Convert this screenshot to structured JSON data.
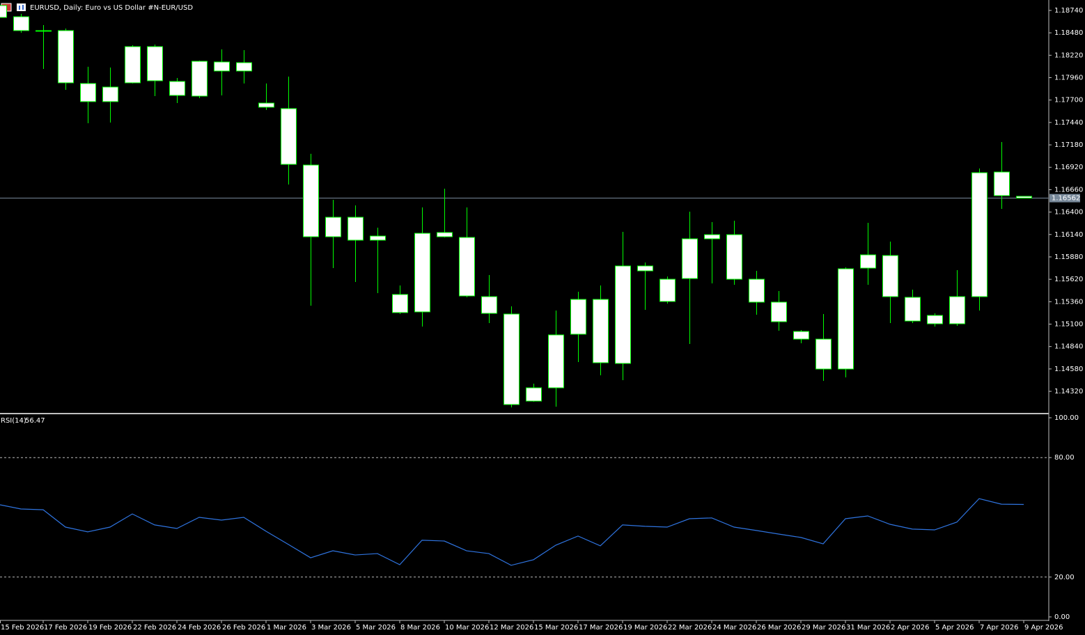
{
  "chart_data": [
    {
      "type": "candlestick",
      "title": "EURUSD, Daily:  Euro vs US Dollar #N-EUR/USD",
      "categories": [
        "15 Feb 2026",
        null,
        "17 Feb 2026",
        null,
        "19 Feb 2026",
        null,
        "22 Feb 2026",
        null,
        "24 Feb 2026",
        null,
        "26 Feb 2026",
        null,
        "1 Mar 2026",
        null,
        "3 Mar 2026",
        null,
        "5 Mar 2026",
        null,
        "8 Mar 2026",
        null,
        "10 Mar 2026",
        null,
        "12 Mar 2026",
        null,
        "15 Mar 2026",
        null,
        "17 Mar 2026",
        null,
        "19 Mar 2026",
        null,
        "22 Mar 2026",
        null,
        "24 Mar 2026",
        null,
        "26 Mar 2026",
        null,
        "29 Mar 2026",
        null,
        "31 Mar 2026",
        null,
        "2 Apr 2026",
        null,
        "5 Apr 2026",
        null,
        "7 Apr 2026",
        null,
        "9 Apr 2026"
      ],
      "open": [
        1.18659,
        1.18667,
        1.18506,
        1.18506,
        1.17892,
        1.17682,
        1.179,
        1.1832,
        1.17916,
        1.17746,
        1.18037,
        1.18134,
        1.17665,
        1.17601,
        1.16946,
        1.16114,
        1.1634,
        1.16122,
        1.15444,
        1.15242,
        1.16163,
        1.16106,
        1.15419,
        1.15217,
        1.14207,
        1.14361,
        1.14983,
        1.15387,
        1.14644,
        1.15775,
        1.15363,
        1.15629,
        1.1609,
        1.16138,
        1.15621,
        1.15355,
        1.15015,
        1.14926,
        1.14579,
        1.1575,
        1.15896,
        1.15411,
        1.15201,
        1.15104,
        1.15419,
        1.16865,
        1.16583
      ],
      "high": [
        1.18821,
        1.187,
        1.1857,
        1.1853,
        1.18086,
        1.18077,
        1.18336,
        1.18344,
        1.17956,
        1.18158,
        1.18288,
        1.18279,
        1.17892,
        1.17972,
        1.17076,
        1.16542,
        1.16478,
        1.16219,
        1.15548,
        1.16454,
        1.16672,
        1.16454,
        1.1567,
        1.15306,
        1.14409,
        1.15258,
        1.15476,
        1.15548,
        1.16171,
        1.15815,
        1.15653,
        1.16405,
        1.16284,
        1.163,
        1.15718,
        1.15484,
        1.15031,
        1.15217,
        1.15759,
        1.16276,
        1.16057,
        1.155,
        1.15225,
        1.15726,
        1.16906,
        1.17213,
        1.16583
      ],
      "low": [
        1.18659,
        1.18481,
        1.18061,
        1.17819,
        1.17431,
        1.17439,
        1.17892,
        1.17746,
        1.17665,
        1.17722,
        1.17754,
        1.17892,
        1.17585,
        1.1672,
        1.15314,
        1.1575,
        1.15589,
        1.1546,
        1.15217,
        1.15072,
        1.16106,
        1.15411,
        1.15112,
        1.14134,
        1.14199,
        1.14142,
        1.1466,
        1.14506,
        1.1445,
        1.15266,
        1.15338,
        1.1487,
        1.15573,
        1.15557,
        1.15209,
        1.15023,
        1.14878,
        1.14442,
        1.14482,
        1.15557,
        1.15112,
        1.15112,
        1.15072,
        1.1508,
        1.15258,
        1.16437,
        1.16562
      ],
      "close": [
        1.18797,
        1.18506,
        1.18498,
        1.179,
        1.17682,
        1.17851,
        1.1832,
        1.17924,
        1.17754,
        1.1815,
        1.18142,
        1.18037,
        1.17617,
        1.16954,
        1.16114,
        1.1634,
        1.16074,
        1.16074,
        1.15234,
        1.16154,
        1.16114,
        1.15427,
        1.15225,
        1.14167,
        1.14361,
        1.14975,
        1.15387,
        1.14652,
        1.15775,
        1.15718,
        1.15621,
        1.1609,
        1.16138,
        1.15621,
        1.15355,
        1.15128,
        1.14926,
        1.14579,
        1.15742,
        1.15904,
        1.15419,
        1.15136,
        1.15104,
        1.15419,
        1.16857,
        1.16591,
        1.16562
      ],
      "color": "#00ff00",
      "body_color": "#ffffff",
      "ylim": [
        1.1407,
        1.18861
      ],
      "yticks": [
        {
          "value": 1.1874,
          "label": "1.18740"
        },
        {
          "value": 1.1848,
          "label": "1.18480"
        },
        {
          "value": 1.1822,
          "label": "1.18220"
        },
        {
          "value": 1.1796,
          "label": "1.17960"
        },
        {
          "value": 1.177,
          "label": "1.17700"
        },
        {
          "value": 1.1744,
          "label": "1.17440"
        },
        {
          "value": 1.1718,
          "label": "1.17180"
        },
        {
          "value": 1.1692,
          "label": "1.16920"
        },
        {
          "value": 1.1666,
          "label": "1.16660"
        },
        {
          "value": 1.164,
          "label": "1.16400"
        },
        {
          "value": 1.1614,
          "label": "1.16140"
        },
        {
          "value": 1.1588,
          "label": "1.15880"
        },
        {
          "value": 1.1562,
          "label": "1.15620"
        },
        {
          "value": 1.1536,
          "label": "1.15360"
        },
        {
          "value": 1.151,
          "label": "1.15100"
        },
        {
          "value": 1.1484,
          "label": "1.14840"
        },
        {
          "value": 1.1458,
          "label": "1.14580"
        },
        {
          "value": 1.1432,
          "label": "1.14320"
        }
      ],
      "price_line_color": "#778899"
    },
    {
      "type": "line",
      "name": "RSI(14)",
      "values": [
        56.3,
        54.2,
        53.8,
        45.1,
        42.7,
        45.1,
        51.7,
        46.2,
        44.4,
        50.0,
        48.6,
        50.0,
        43.0,
        36.4,
        29.7,
        33.2,
        31.1,
        31.8,
        26.2,
        38.5,
        38.1,
        33.2,
        31.8,
        25.9,
        28.7,
        36.0,
        40.6,
        35.7,
        46.2,
        45.5,
        45.1,
        49.3,
        49.7,
        45.1,
        43.4,
        41.6,
        39.9,
        36.7,
        49.3,
        50.7,
        46.5,
        44.1,
        43.7,
        47.6,
        59.4,
        56.6,
        56.47
      ],
      "color": "#2f74e0",
      "ylim": [
        -2.1,
        101.4
      ],
      "yticks": [
        {
          "value": 100,
          "label": "100.00"
        },
        {
          "value": 80,
          "label": "80.00"
        },
        {
          "value": 20,
          "label": "20.00"
        },
        {
          "value": 0,
          "label": "0.00"
        }
      ],
      "levels": [
        80,
        20
      ]
    }
  ]
}
